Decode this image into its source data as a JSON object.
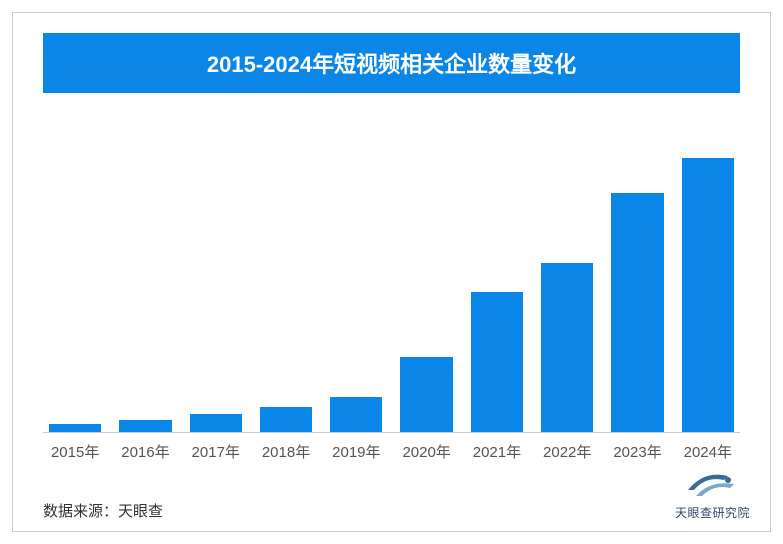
{
  "chart": {
    "type": "bar",
    "title": "2015-2024年短视频相关企业数量变化",
    "title_bg_color": "#0a86e9",
    "title_text_color": "#ffffff",
    "title_fontsize": 22,
    "categories": [
      "2015年",
      "2016年",
      "2017年",
      "2018年",
      "2019年",
      "2020年",
      "2021年",
      "2022年",
      "2023年",
      "2024年"
    ],
    "values": [
      8,
      12,
      18,
      25,
      35,
      75,
      140,
      170,
      240,
      275
    ],
    "ylim": [
      0,
      300
    ],
    "bar_color": "#0a86e9",
    "axis_line_color": "#cccccc",
    "x_label_fontsize": 15,
    "x_label_color": "#555555",
    "background_color": "#ffffff",
    "border_color": "#cccccc"
  },
  "source": {
    "label": "数据来源：",
    "value": "天眼查",
    "fontsize": 15,
    "color": "#333333"
  },
  "logo": {
    "text": "天眼查研究院",
    "primary_color": "#2a4a6a",
    "accent_color": "#7aa6c9"
  }
}
